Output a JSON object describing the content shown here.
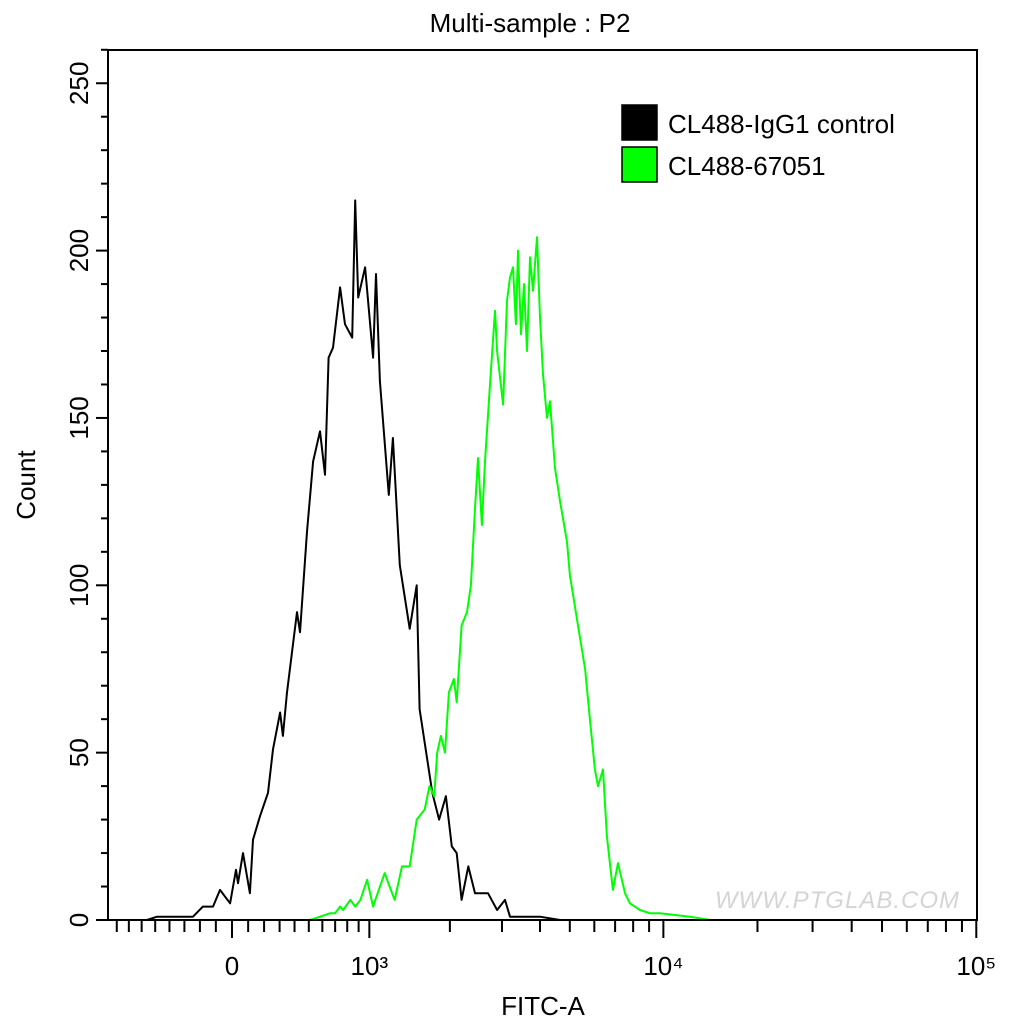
{
  "chart_data": {
    "type": "line",
    "title": "Multi-sample : P2",
    "xlabel": "FITC-A",
    "ylabel": "Count",
    "x_scale": "biexponential",
    "xlim": [
      -874,
      100000
    ],
    "ylim": [
      0,
      260
    ],
    "grid": false,
    "legend_position": "top-right",
    "x_ticks": [
      {
        "value": 0,
        "label": "0"
      },
      {
        "value": 1000,
        "label": "10³"
      },
      {
        "value": 10000,
        "label": "10⁴"
      },
      {
        "value": 100000,
        "label": "10⁵"
      }
    ],
    "y_ticks": [
      {
        "value": 0,
        "label": "0"
      },
      {
        "value": 50,
        "label": "50"
      },
      {
        "value": 100,
        "label": "100"
      },
      {
        "value": 150,
        "label": "150"
      },
      {
        "value": 200,
        "label": "200"
      },
      {
        "value": 250,
        "label": "250"
      }
    ],
    "series": [
      {
        "name": "CL488-IgG1 control",
        "color": "#000000",
        "points": [
          [
            -874,
            0
          ],
          [
            -560,
            0
          ],
          [
            -487,
            1
          ],
          [
            -309,
            1
          ],
          [
            -244,
            1
          ],
          [
            -181,
            4
          ],
          [
            -118,
            4
          ],
          [
            -74,
            9
          ],
          [
            -12,
            5
          ],
          [
            25,
            15
          ],
          [
            37,
            11
          ],
          [
            68,
            20
          ],
          [
            111,
            8
          ],
          [
            130,
            24
          ],
          [
            174,
            31
          ],
          [
            225,
            38
          ],
          [
            257,
            51
          ],
          [
            303,
            62
          ],
          [
            322,
            55
          ],
          [
            349,
            68
          ],
          [
            417,
            92
          ],
          [
            438,
            86
          ],
          [
            487,
            116
          ],
          [
            531,
            137
          ],
          [
            582,
            146
          ],
          [
            620,
            133
          ],
          [
            648,
            168
          ],
          [
            683,
            171
          ],
          [
            740,
            189
          ],
          [
            781,
            178
          ],
          [
            843,
            174
          ],
          [
            869,
            215
          ],
          [
            896,
            186
          ],
          [
            960,
            195
          ],
          [
            1036,
            168
          ],
          [
            1065,
            193
          ],
          [
            1105,
            161
          ],
          [
            1198,
            127
          ],
          [
            1242,
            144
          ],
          [
            1320,
            106
          ],
          [
            1438,
            87
          ],
          [
            1525,
            100
          ],
          [
            1563,
            63
          ],
          [
            1735,
            38
          ],
          [
            1834,
            30
          ],
          [
            1938,
            37
          ],
          [
            2031,
            22
          ],
          [
            2112,
            20
          ],
          [
            2195,
            6
          ],
          [
            2313,
            16
          ],
          [
            2438,
            8
          ],
          [
            2694,
            8
          ],
          [
            2889,
            3
          ],
          [
            3069,
            6
          ],
          [
            3188,
            1
          ],
          [
            4001,
            1
          ],
          [
            4649,
            0
          ]
        ]
      },
      {
        "name": "CL488-67051",
        "color": "#00ff00",
        "points": [
          [
            270,
            0
          ],
          [
            369,
            0
          ],
          [
            509,
            0
          ],
          [
            582,
            1
          ],
          [
            658,
            2
          ],
          [
            699,
            2
          ],
          [
            740,
            4
          ],
          [
            765,
            3
          ],
          [
            826,
            6
          ],
          [
            869,
            4
          ],
          [
            916,
            6
          ],
          [
            979,
            12
          ],
          [
            1036,
            4
          ],
          [
            1093,
            9
          ],
          [
            1154,
            14
          ],
          [
            1206,
            10
          ],
          [
            1262,
            6
          ],
          [
            1346,
            16
          ],
          [
            1438,
            16
          ],
          [
            1525,
            30
          ],
          [
            1630,
            33
          ],
          [
            1696,
            40
          ],
          [
            1763,
            37
          ],
          [
            1806,
            50
          ],
          [
            1861,
            55
          ],
          [
            1924,
            50
          ],
          [
            1985,
            68
          ],
          [
            2065,
            72
          ],
          [
            2112,
            65
          ],
          [
            2195,
            88
          ],
          [
            2290,
            92
          ],
          [
            2361,
            100
          ],
          [
            2438,
            123
          ],
          [
            2495,
            138
          ],
          [
            2572,
            118
          ],
          [
            2633,
            137
          ],
          [
            2737,
            160
          ],
          [
            2844,
            182
          ],
          [
            2889,
            170
          ],
          [
            3025,
            154
          ],
          [
            3116,
            185
          ],
          [
            3188,
            192
          ],
          [
            3262,
            195
          ],
          [
            3336,
            178
          ],
          [
            3389,
            200
          ],
          [
            3466,
            175
          ],
          [
            3546,
            190
          ],
          [
            3627,
            170
          ],
          [
            3709,
            198
          ],
          [
            3794,
            188
          ],
          [
            3912,
            204
          ],
          [
            4001,
            180
          ],
          [
            4092,
            163
          ],
          [
            4215,
            150
          ],
          [
            4311,
            155
          ],
          [
            4476,
            135
          ],
          [
            4649,
            125
          ],
          [
            4896,
            113
          ],
          [
            5005,
            103
          ],
          [
            5314,
            88
          ],
          [
            5601,
            75
          ],
          [
            5808,
            60
          ],
          [
            6027,
            45
          ],
          [
            6166,
            40
          ],
          [
            6398,
            45
          ],
          [
            6588,
            25
          ],
          [
            6888,
            9
          ],
          [
            7149,
            17
          ],
          [
            7532,
            8
          ],
          [
            7812,
            5
          ],
          [
            8417,
            3
          ],
          [
            9064,
            2
          ],
          [
            9752,
            2
          ],
          [
            12163,
            1
          ],
          [
            14104,
            0
          ],
          [
            16338,
            0
          ]
        ]
      }
    ]
  },
  "watermark": "WWW.PTGLAB.COM"
}
